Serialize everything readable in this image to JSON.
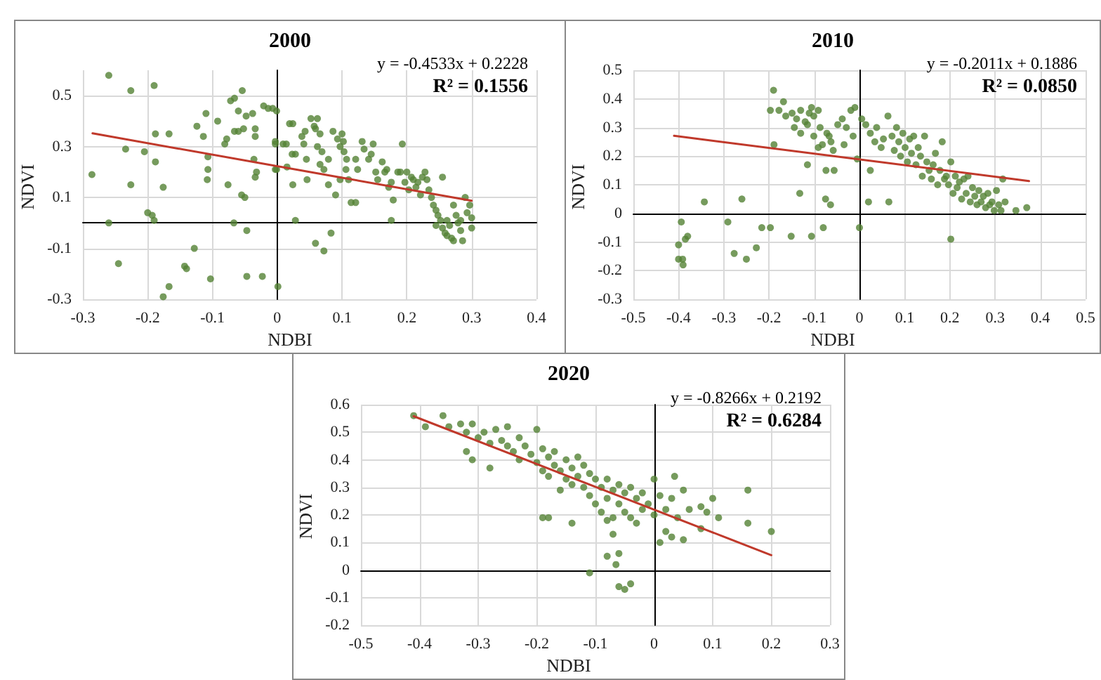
{
  "chart_data": [
    {
      "type": "scatter",
      "title": "2000",
      "xlabel": "NDBI",
      "ylabel": "NDVI",
      "annotations": [
        "y = -0.4533x + 0.2228",
        "R² = 0.1556"
      ],
      "xlim": [
        -0.3,
        0.4
      ],
      "xticks": [
        -0.3,
        -0.2,
        -0.1,
        0,
        0.1,
        0.2,
        0.3,
        0.4
      ],
      "ylim": [
        -0.3,
        0.6
      ],
      "yticks": [
        -0.3,
        -0.1,
        0.1,
        0.3,
        0.5
      ],
      "grid": true,
      "series": [
        {
          "color": "#548235",
          "marker": "circle",
          "x": [
            -0.286,
            -0.26,
            -0.226,
            -0.19,
            -0.234,
            -0.205,
            -0.226,
            -0.26,
            -0.188,
            -0.188,
            -0.167,
            -0.176,
            -0.2,
            -0.193,
            -0.19,
            -0.245,
            -0.176,
            -0.167,
            -0.143,
            -0.14,
            -0.128,
            -0.103,
            -0.124,
            -0.114,
            -0.11,
            -0.107,
            -0.107,
            -0.108,
            -0.092,
            -0.081,
            -0.078,
            -0.076,
            -0.072,
            -0.066,
            -0.06,
            -0.067,
            -0.066,
            -0.06,
            -0.052,
            -0.055,
            -0.05,
            -0.054,
            -0.048,
            -0.038,
            -0.034,
            -0.034,
            -0.036,
            -0.034,
            -0.032,
            -0.047,
            -0.047,
            -0.023,
            -0.021,
            -0.014,
            -0.007,
            -0.001,
            -0.003,
            -0.003,
            -0.003,
            -0.001,
            0.001,
            0.009,
            0.014,
            0.015,
            0.019,
            0.024,
            0.023,
            0.028,
            0.024,
            0.028,
            0.038,
            0.043,
            0.041,
            0.045,
            0.046,
            0.052,
            0.057,
            0.062,
            0.059,
            0.066,
            0.062,
            0.069,
            0.066,
            0.072,
            0.079,
            0.059,
            0.072,
            0.083,
            0.079,
            0.09,
            0.097,
            0.086,
            0.093,
            0.1,
            0.103,
            0.107,
            0.097,
            0.102,
            0.106,
            0.114,
            0.121,
            0.11,
            0.121,
            0.124,
            0.131,
            0.134,
            0.141,
            0.145,
            0.148,
            0.152,
            0.155,
            0.162,
            0.166,
            0.169,
            0.172,
            0.176,
            0.176,
            0.179,
            0.186,
            0.19,
            0.193,
            0.197,
            0.2,
            0.203,
            0.207,
            0.21,
            0.214,
            0.217,
            0.221,
            0.224,
            0.228,
            0.231,
            0.234,
            0.238,
            0.241,
            0.245,
            0.248,
            0.252,
            0.255,
            0.255,
            0.259,
            0.262,
            0.266,
            0.269,
            0.272,
            0.276,
            0.279,
            0.283,
            0.286,
            0.29,
            0.293,
            0.297,
            0.3,
            0.3,
            0.245,
            0.262,
            0.272,
            0.283
          ],
          "values": [
            0.19,
            0.58,
            0.52,
            0.54,
            0.29,
            0.28,
            0.15,
            0.0,
            0.35,
            0.24,
            0.35,
            0.14,
            0.04,
            0.03,
            0.01,
            -0.16,
            -0.29,
            -0.25,
            -0.17,
            -0.18,
            -0.1,
            -0.22,
            0.38,
            0.34,
            0.43,
            0.26,
            0.21,
            0.17,
            0.4,
            0.31,
            0.33,
            0.15,
            0.48,
            0.49,
            0.44,
            0.0,
            0.36,
            0.36,
            0.37,
            0.11,
            0.1,
            0.52,
            0.42,
            0.43,
            0.37,
            0.34,
            0.25,
            0.18,
            0.2,
            -0.03,
            -0.21,
            -0.21,
            0.46,
            0.45,
            0.45,
            0.44,
            0.32,
            0.31,
            0.21,
            0.21,
            -0.25,
            0.31,
            0.31,
            0.22,
            0.39,
            0.39,
            0.27,
            0.27,
            0.15,
            0.01,
            0.34,
            0.36,
            0.31,
            0.25,
            0.17,
            0.41,
            0.38,
            0.41,
            0.37,
            0.35,
            0.3,
            0.28,
            0.23,
            0.21,
            0.25,
            -0.08,
            -0.11,
            -0.04,
            0.15,
            0.11,
            0.17,
            0.36,
            0.33,
            0.35,
            0.28,
            0.25,
            0.3,
            0.32,
            0.21,
            0.08,
            0.08,
            0.17,
            0.25,
            0.21,
            0.32,
            0.29,
            0.25,
            0.27,
            0.31,
            0.2,
            0.17,
            0.24,
            0.2,
            0.21,
            0.14,
            0.16,
            0.01,
            0.09,
            0.2,
            0.2,
            0.31,
            0.16,
            0.2,
            0.13,
            0.18,
            0.17,
            0.14,
            0.16,
            0.11,
            0.18,
            0.2,
            0.17,
            0.13,
            0.1,
            0.07,
            0.05,
            0.03,
            0.01,
            0.18,
            -0.02,
            -0.04,
            -0.05,
            -0.01,
            -0.06,
            0.07,
            0.03,
            0.0,
            -0.03,
            -0.07,
            0.1,
            0.04,
            0.07,
            -0.02,
            0.02,
            -0.01,
            0.01,
            -0.07,
            0.01
          ]
        },
        {
          "type": "line",
          "color": "#c0392b",
          "x": [
            -0.285,
            0.3
          ],
          "values": [
            0.352,
            0.087
          ]
        }
      ]
    },
    {
      "type": "scatter",
      "title": "2010",
      "xlabel": "NDBI",
      "ylabel": "NDVI",
      "annotations": [
        "y = -0.2011x + 0.1886",
        "R² = 0.0850"
      ],
      "xlim": [
        -0.5,
        0.5
      ],
      "xticks": [
        -0.5,
        -0.4,
        -0.3,
        -0.2,
        -0.1,
        0,
        0.1,
        0.2,
        0.3,
        0.4,
        0.5
      ],
      "ylim": [
        -0.3,
        0.5
      ],
      "yticks": [
        -0.3,
        -0.2,
        -0.1,
        0,
        0.1,
        0.2,
        0.3,
        0.4,
        0.5
      ],
      "grid": true,
      "series": [
        {
          "color": "#548235",
          "marker": "circle",
          "x": [
            -0.394,
            -0.38,
            -0.385,
            -0.4,
            -0.4,
            -0.391,
            -0.39,
            -0.343,
            -0.291,
            -0.277,
            -0.26,
            -0.25,
            -0.228,
            -0.216,
            -0.197,
            -0.151,
            -0.132,
            -0.115,
            -0.106,
            -0.08,
            -0.074,
            -0.056,
            -0.075,
            -0.064,
            -0.063,
            -0.058,
            0.0,
            0.02,
            0.024,
            0.065,
            0.202,
            -0.197,
            -0.19,
            -0.168,
            -0.189,
            -0.178,
            -0.163,
            -0.149,
            -0.139,
            -0.13,
            -0.12,
            -0.111,
            -0.101,
            -0.091,
            -0.144,
            -0.13,
            -0.115,
            -0.101,
            -0.087,
            -0.072,
            -0.106,
            -0.082,
            -0.067,
            -0.091,
            -0.048,
            -0.038,
            -0.029,
            -0.019,
            -0.01,
            -0.034,
            -0.014,
            -0.005,
            0.005,
            0.014,
            0.024,
            0.034,
            0.038,
            0.048,
            0.053,
            0.063,
            0.072,
            0.077,
            0.082,
            0.087,
            0.091,
            0.096,
            0.101,
            0.106,
            0.111,
            0.115,
            0.12,
            0.125,
            0.13,
            0.135,
            0.139,
            0.144,
            0.149,
            0.154,
            0.159,
            0.163,
            0.168,
            0.173,
            0.178,
            0.183,
            0.188,
            0.192,
            0.197,
            0.202,
            0.207,
            0.212,
            0.216,
            0.221,
            0.226,
            0.231,
            0.236,
            0.24,
            0.245,
            0.25,
            0.255,
            0.26,
            0.264,
            0.269,
            0.274,
            0.279,
            0.284,
            0.288,
            0.293,
            0.298,
            0.303,
            0.308,
            0.313,
            0.317,
            0.322,
            0.346,
            0.37
          ],
          "values": [
            -0.03,
            -0.08,
            -0.09,
            -0.11,
            -0.16,
            -0.16,
            -0.18,
            0.04,
            -0.03,
            -0.14,
            0.05,
            -0.16,
            -0.12,
            -0.05,
            -0.05,
            -0.08,
            0.07,
            0.17,
            -0.08,
            -0.05,
            0.15,
            0.15,
            0.05,
            0.03,
            0.25,
            0.22,
            -0.05,
            0.04,
            0.15,
            0.04,
            -0.09,
            0.36,
            0.43,
            0.39,
            0.24,
            0.36,
            0.34,
            0.35,
            0.33,
            0.36,
            0.32,
            0.35,
            0.34,
            0.36,
            0.3,
            0.28,
            0.31,
            0.27,
            0.3,
            0.28,
            0.37,
            0.24,
            0.27,
            0.23,
            0.31,
            0.33,
            0.3,
            0.36,
            0.37,
            0.24,
            0.27,
            0.19,
            0.33,
            0.31,
            0.28,
            0.25,
            0.3,
            0.23,
            0.26,
            0.34,
            0.27,
            0.22,
            0.3,
            0.25,
            0.2,
            0.28,
            0.23,
            0.18,
            0.26,
            0.21,
            0.27,
            0.17,
            0.23,
            0.2,
            0.13,
            0.27,
            0.18,
            0.15,
            0.12,
            0.17,
            0.21,
            0.1,
            0.15,
            0.25,
            0.12,
            0.13,
            0.1,
            0.18,
            0.07,
            0.13,
            0.09,
            0.11,
            0.05,
            0.12,
            0.07,
            0.13,
            0.04,
            0.09,
            0.06,
            0.03,
            0.08,
            0.04,
            0.06,
            0.02,
            0.07,
            0.03,
            0.04,
            0.01,
            0.08,
            0.03,
            0.01,
            0.12,
            0.04,
            0.01,
            0.02
          ]
        },
        {
          "type": "line",
          "color": "#c0392b",
          "x": [
            -0.41,
            0.375
          ],
          "values": [
            0.271,
            0.113
          ]
        }
      ]
    },
    {
      "type": "scatter",
      "title": "2020",
      "xlabel": "NDBI",
      "ylabel": "NDVI",
      "annotations": [
        "y = -0.8266x + 0.2192",
        "R² = 0.6284"
      ],
      "xlim": [
        -0.5,
        0.3
      ],
      "xticks": [
        -0.5,
        -0.4,
        -0.3,
        -0.2,
        -0.1,
        0,
        0.1,
        0.2,
        0.3
      ],
      "ylim": [
        -0.2,
        0.6
      ],
      "yticks": [
        -0.2,
        -0.1,
        0,
        0.1,
        0.2,
        0.3,
        0.4,
        0.5,
        0.6
      ],
      "grid": true,
      "series": [
        {
          "color": "#548235",
          "marker": "circle",
          "x": [
            -0.41,
            -0.39,
            -0.36,
            -0.35,
            -0.33,
            -0.32,
            -0.31,
            -0.32,
            -0.31,
            -0.3,
            -0.29,
            -0.28,
            -0.28,
            -0.27,
            -0.26,
            -0.25,
            -0.25,
            -0.24,
            -0.23,
            -0.23,
            -0.22,
            -0.21,
            -0.2,
            -0.2,
            -0.19,
            -0.19,
            -0.18,
            -0.18,
            -0.17,
            -0.17,
            -0.16,
            -0.16,
            -0.15,
            -0.15,
            -0.14,
            -0.14,
            -0.13,
            -0.13,
            -0.12,
            -0.12,
            -0.11,
            -0.11,
            -0.1,
            -0.1,
            -0.09,
            -0.09,
            -0.08,
            -0.08,
            -0.07,
            -0.07,
            -0.06,
            -0.06,
            -0.05,
            -0.05,
            -0.04,
            -0.04,
            -0.03,
            -0.03,
            -0.02,
            -0.02,
            -0.01,
            0.0,
            0.0,
            0.01,
            0.01,
            0.02,
            0.02,
            0.03,
            0.03,
            0.035,
            0.04,
            0.05,
            0.05,
            0.06,
            0.08,
            0.08,
            0.09,
            0.1,
            0.11,
            0.16,
            0.16,
            0.2,
            -0.19,
            -0.18,
            -0.14,
            -0.11,
            -0.08,
            -0.06,
            -0.06,
            -0.05,
            -0.04,
            -0.065,
            -0.07,
            -0.08
          ],
          "values": [
            0.56,
            0.52,
            0.56,
            0.52,
            0.53,
            0.5,
            0.53,
            0.43,
            0.4,
            0.48,
            0.5,
            0.46,
            0.37,
            0.51,
            0.47,
            0.52,
            0.45,
            0.43,
            0.48,
            0.4,
            0.45,
            0.42,
            0.51,
            0.39,
            0.44,
            0.36,
            0.41,
            0.34,
            0.43,
            0.38,
            0.36,
            0.29,
            0.4,
            0.33,
            0.37,
            0.31,
            0.41,
            0.34,
            0.38,
            0.3,
            0.35,
            0.27,
            0.33,
            0.24,
            0.3,
            0.21,
            0.33,
            0.26,
            0.29,
            0.19,
            0.31,
            0.24,
            0.28,
            0.21,
            0.3,
            0.19,
            0.26,
            0.17,
            0.28,
            0.22,
            0.24,
            0.33,
            0.2,
            0.27,
            0.1,
            0.22,
            0.14,
            0.26,
            0.12,
            0.34,
            0.19,
            0.29,
            0.11,
            0.22,
            0.15,
            0.23,
            0.21,
            0.26,
            0.19,
            0.29,
            0.17,
            0.14,
            0.19,
            0.19,
            0.17,
            -0.01,
            0.05,
            0.06,
            -0.06,
            -0.07,
            -0.05,
            0.02,
            0.13,
            0.18
          ]
        },
        {
          "type": "line",
          "color": "#c0392b",
          "x": [
            -0.41,
            0.2
          ],
          "values": [
            0.558,
            0.054
          ]
        }
      ]
    }
  ]
}
